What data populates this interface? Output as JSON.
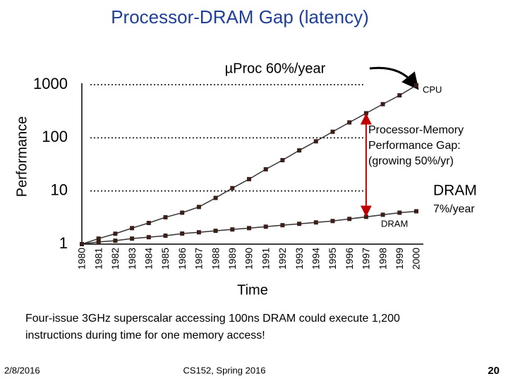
{
  "chart_data": {
    "type": "line",
    "title": "Processor-DRAM Gap (latency)",
    "y_label": "Performance",
    "x_label": "Time",
    "log_scale_y": true,
    "grid": true,
    "categories": [
      "1980",
      "1981",
      "1982",
      "1983",
      "1984",
      "1985",
      "1986",
      "1987",
      "1988",
      "1989",
      "1990",
      "1991",
      "1992",
      "1993",
      "1994",
      "1995",
      "1996",
      "1997",
      "1998",
      "1999",
      "2000"
    ],
    "ylim": [
      1,
      1000
    ],
    "yticks": [
      1,
      10,
      100,
      1000
    ],
    "series": [
      {
        "name": "CPU",
        "color": "#3b1f1a",
        "values": [
          1,
          1.27,
          1.57,
          2,
          2.5,
          3.2,
          3.9,
          5,
          7.4,
          11.3,
          16.7,
          25.6,
          38,
          58,
          86,
          130,
          195,
          290,
          430,
          630,
          970
        ]
      },
      {
        "name": "DRAM",
        "color": "#3b1f1a",
        "values": [
          1,
          1.1,
          1.16,
          1.27,
          1.35,
          1.44,
          1.58,
          1.67,
          1.78,
          1.89,
          2,
          2.13,
          2.27,
          2.41,
          2.56,
          2.72,
          2.98,
          3.26,
          3.57,
          3.9,
          4.15
        ]
      }
    ],
    "annotations": {
      "cpu_rate": "µProc 60%/year",
      "gap": [
        "Processor-Memory",
        "Performance Gap:",
        "(growing 50%/yr)"
      ],
      "dram": "DRAM",
      "dram_rate": "7%/year"
    }
  },
  "footnote": [
    "Four-issue 3GHz superscalar accessing 100ns DRAM could execute 1,200",
    "instructions during time for one memory access!"
  ],
  "footer": {
    "date": "2/8/2016",
    "course": "CS152, Spring 2016",
    "page": "20"
  }
}
